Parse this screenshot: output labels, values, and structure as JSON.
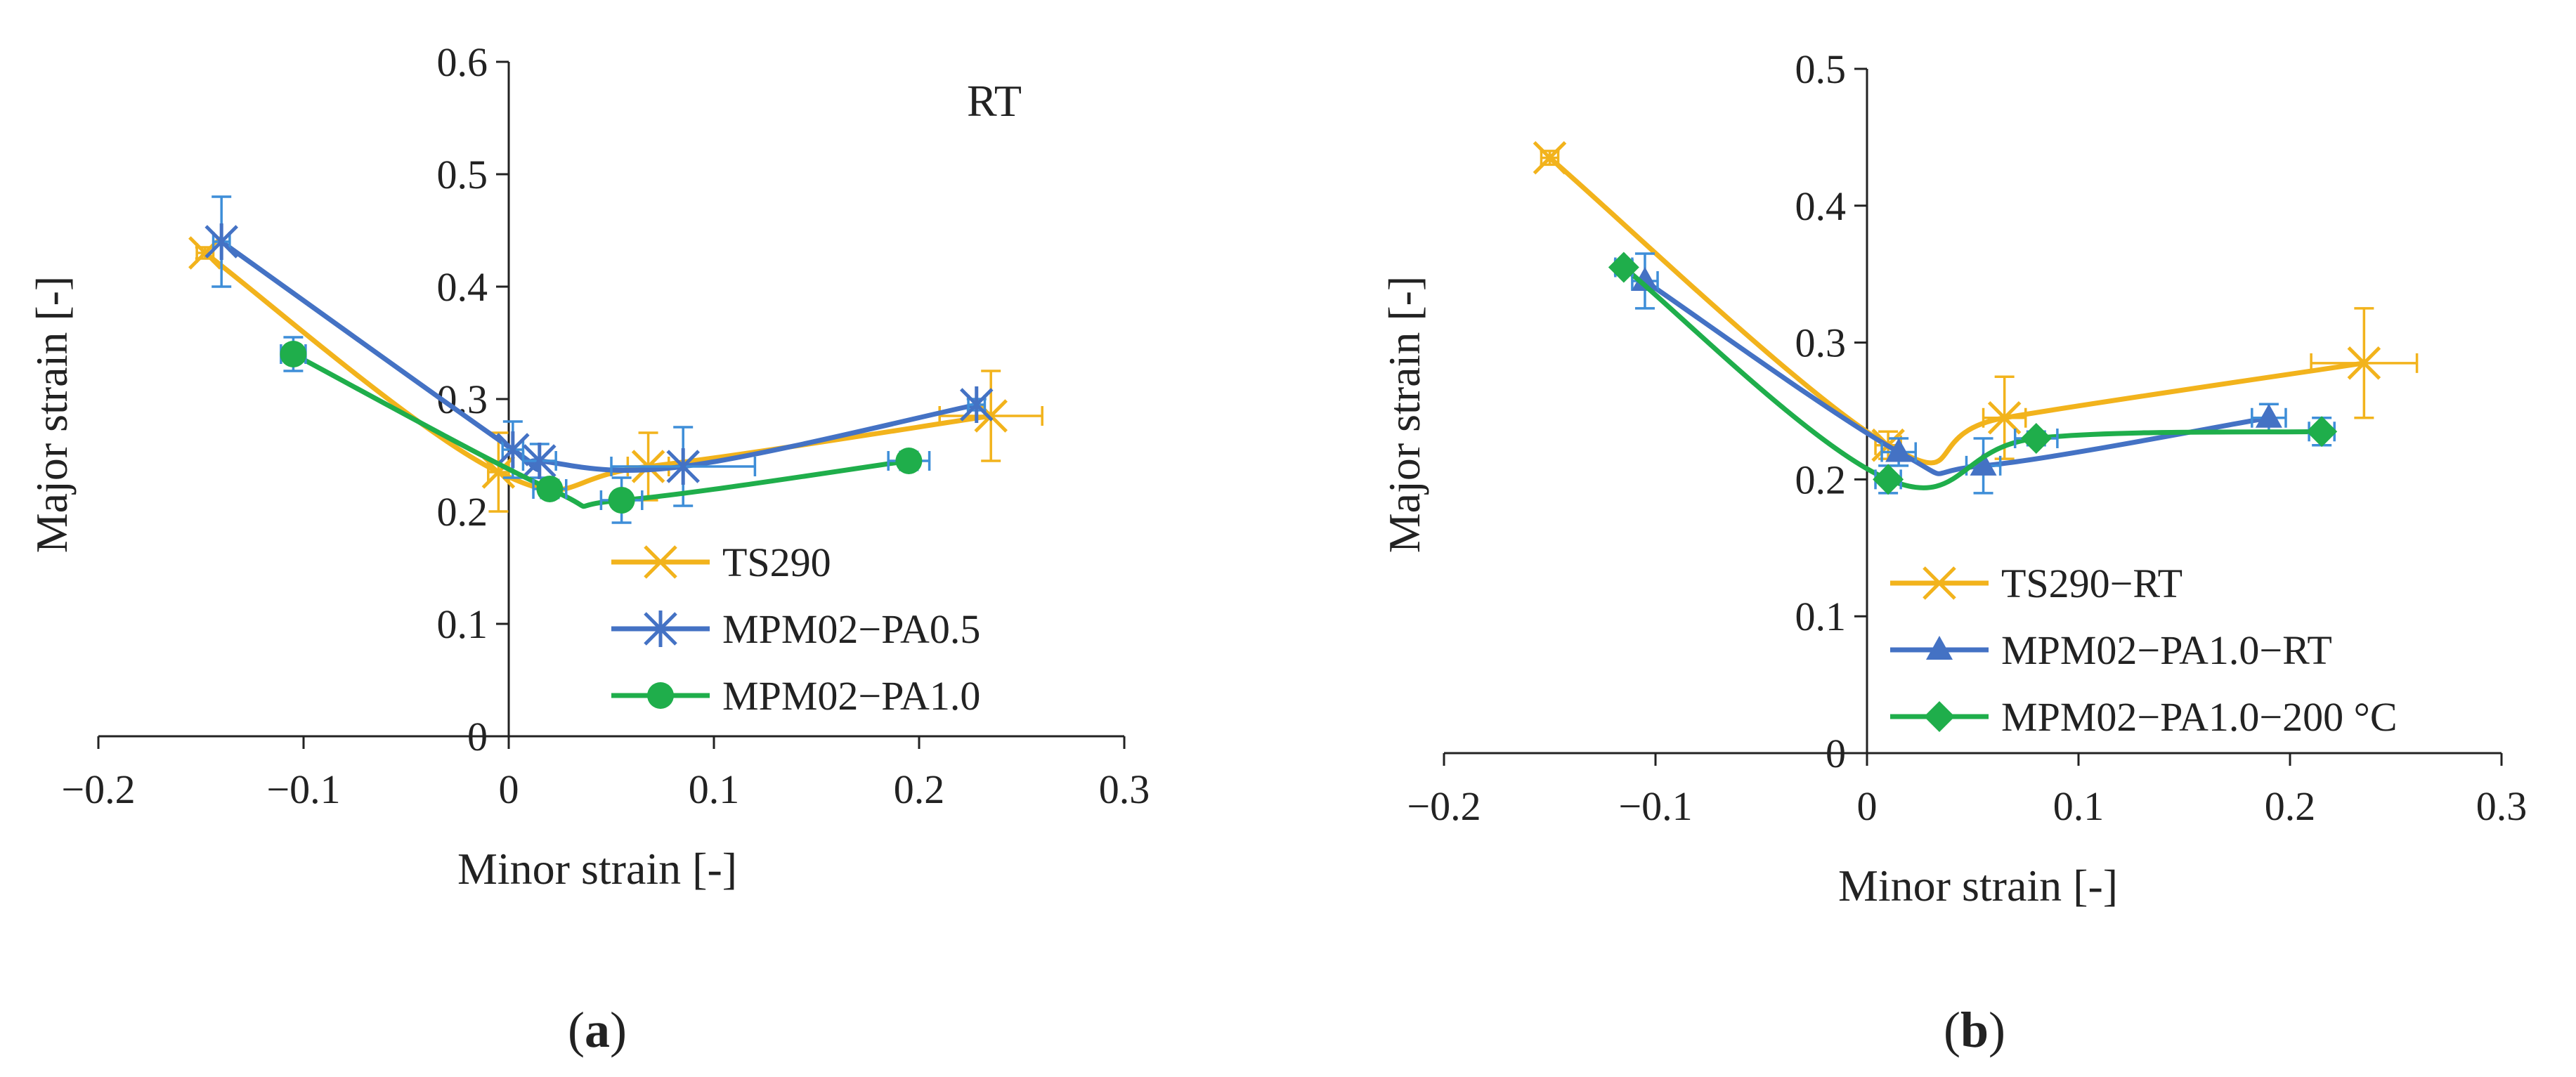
{
  "colors": {
    "yellow": "#F2B31C",
    "blue": "#4472C4",
    "green": "#1FAE4B",
    "errorbar": "#3E8ED8",
    "axis": "#222222"
  },
  "chart_data": [
    {
      "type": "scatter",
      "id": "a",
      "panel_label": {
        "open": "(",
        "letter": "a",
        "close": ")"
      },
      "annotation": "RT",
      "xlabel": "Minor strain [-]",
      "ylabel": "Major strain [-]",
      "xlim": [
        -0.2,
        0.3
      ],
      "ylim": [
        0,
        0.6
      ],
      "xticks": [
        -0.2,
        -0.1,
        0,
        0.1,
        0.2,
        0.3
      ],
      "xtick_labels": [
        "−0.2",
        "−0.1",
        "0",
        "0.1",
        "0.2",
        "0.3"
      ],
      "yticks": [
        0,
        0.1,
        0.2,
        0.3,
        0.4,
        0.5,
        0.6
      ],
      "ytick_labels": [
        "0",
        "0.1",
        "0.2",
        "0.3",
        "0.4",
        "0.5",
        "0.6"
      ],
      "legend_position": "bottom-right",
      "series": [
        {
          "name": "TS290",
          "color": "#F2B31C",
          "marker": "x",
          "points": [
            {
              "x": -0.148,
              "y": 0.43,
              "xerr": 0.004,
              "yerr": 0.005
            },
            {
              "x": -0.005,
              "y": 0.235,
              "xerr": 0.005,
              "yerr": 0.035
            },
            {
              "x": 0.068,
              "y": 0.24,
              "xerr": 0.01,
              "yerr": 0.03
            },
            {
              "x": 0.235,
              "y": 0.285,
              "xerr": 0.025,
              "yerr": 0.04
            }
          ]
        },
        {
          "name": "MPM02−PA0.5",
          "color": "#4472C4",
          "marker": "asterisk",
          "points": [
            {
              "x": -0.14,
              "y": 0.44,
              "xerr": 0.004,
              "yerr": 0.04
            },
            {
              "x": 0.002,
              "y": 0.255,
              "xerr": 0.005,
              "yerr": 0.025
            },
            {
              "x": 0.015,
              "y": 0.245,
              "xerr": 0.008,
              "yerr": 0.015
            },
            {
              "x": 0.085,
              "y": 0.24,
              "xerr": 0.035,
              "yerr": 0.035
            },
            {
              "x": 0.228,
              "y": 0.295,
              "xerr": 0.004,
              "yerr": 0.005
            }
          ]
        },
        {
          "name": "MPM02−PA1.0",
          "color": "#1FAE4B",
          "marker": "circle",
          "points": [
            {
              "x": -0.105,
              "y": 0.34,
              "xerr": 0.006,
              "yerr": 0.015
            },
            {
              "x": 0.02,
              "y": 0.22,
              "xerr": 0.008,
              "yerr": 0.008
            },
            {
              "x": 0.055,
              "y": 0.21,
              "xerr": 0.01,
              "yerr": 0.02
            },
            {
              "x": 0.195,
              "y": 0.245,
              "xerr": 0.01,
              "yerr": 0.008
            }
          ]
        }
      ]
    },
    {
      "type": "scatter",
      "id": "b",
      "panel_label": {
        "open": "(",
        "letter": "b",
        "close": ")"
      },
      "annotation": "",
      "xlabel": "Minor strain [-]",
      "ylabel": "Major strain [-]",
      "xlim": [
        -0.2,
        0.3
      ],
      "ylim": [
        0,
        0.5
      ],
      "xticks": [
        -0.2,
        -0.1,
        0,
        0.1,
        0.2,
        0.3
      ],
      "xtick_labels": [
        "−0.2",
        "−0.1",
        "0",
        "0.1",
        "0.2",
        "0.3"
      ],
      "yticks": [
        0,
        0.1,
        0.2,
        0.3,
        0.4,
        0.5
      ],
      "ytick_labels": [
        "0",
        "0.1",
        "0.2",
        "0.3",
        "0.4",
        "0.5"
      ],
      "legend_position": "bottom-center",
      "series": [
        {
          "name": "TS290−RT",
          "color": "#F2B31C",
          "marker": "x",
          "points": [
            {
              "x": -0.15,
              "y": 0.435,
              "xerr": 0.004,
              "yerr": 0.005
            },
            {
              "x": 0.01,
              "y": 0.225,
              "xerr": 0.006,
              "yerr": 0.01
            },
            {
              "x": 0.065,
              "y": 0.245,
              "xerr": 0.01,
              "yerr": 0.03
            },
            {
              "x": 0.235,
              "y": 0.285,
              "xerr": 0.025,
              "yerr": 0.04
            }
          ]
        },
        {
          "name": "MPM02−PA1.0−RT",
          "color": "#4472C4",
          "marker": "triangle",
          "points": [
            {
              "x": -0.105,
              "y": 0.345,
              "xerr": 0.006,
              "yerr": 0.02
            },
            {
              "x": 0.015,
              "y": 0.22,
              "xerr": 0.008,
              "yerr": 0.01
            },
            {
              "x": 0.055,
              "y": 0.21,
              "xerr": 0.008,
              "yerr": 0.02
            },
            {
              "x": 0.19,
              "y": 0.245,
              "xerr": 0.008,
              "yerr": 0.01
            }
          ]
        },
        {
          "name": "MPM02−PA1.0−200  °C",
          "color": "#1FAE4B",
          "marker": "diamond",
          "points": [
            {
              "x": -0.115,
              "y": 0.355,
              "xerr": 0.004,
              "yerr": 0.005
            },
            {
              "x": 0.01,
              "y": 0.2,
              "xerr": 0.006,
              "yerr": 0.01
            },
            {
              "x": 0.08,
              "y": 0.23,
              "xerr": 0.01,
              "yerr": 0.005
            },
            {
              "x": 0.215,
              "y": 0.235,
              "xerr": 0.006,
              "yerr": 0.01
            }
          ]
        }
      ]
    }
  ]
}
